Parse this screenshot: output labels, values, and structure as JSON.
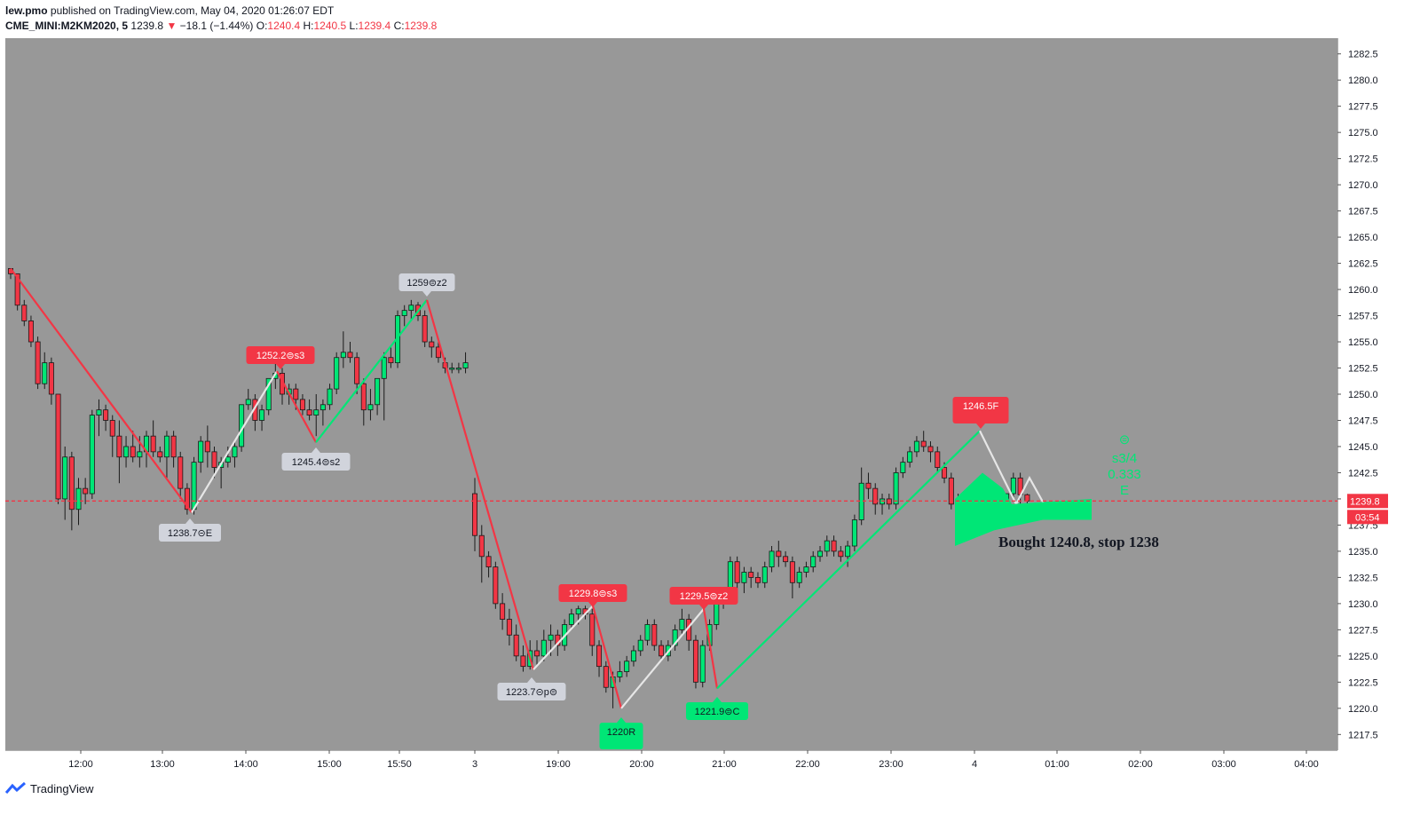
{
  "header": {
    "author": "lew.pmo",
    "published_text": "published on TradingView.com, May 04, 2020 01:26:07 EDT",
    "symbol": "CME_MINI:M2KM2020, 5",
    "last": "1239.8",
    "change": "−18.1 (−1.44%)",
    "open_label": "O:",
    "open": "1240.4",
    "high_label": "H:",
    "high": "1240.5",
    "low_label": "L:",
    "low": "1239.4",
    "close_label": "C:",
    "close": "1239.8"
  },
  "footer": {
    "brand": "TradingView"
  },
  "colors": {
    "up": "#00e676",
    "down": "#f23645",
    "plot_bg": "#989898",
    "label_red": "#f23645",
    "label_grey": "#d1d4dc",
    "label_green": "#00e676",
    "zigzag_white": "#e6e6e6"
  },
  "chart_data": {
    "type": "candlestick",
    "y_range": [
      1216.0,
      1284.0
    ],
    "y_ticks": [
      "1217.5",
      "1220.0",
      "1222.5",
      "1225.0",
      "1227.5",
      "1230.0",
      "1232.5",
      "1235.0",
      "1237.5",
      "1240.0",
      "1242.5",
      "1245.0",
      "1247.5",
      "1250.0",
      "1252.5",
      "1255.0",
      "1257.5",
      "1260.0",
      "1262.5",
      "1265.0",
      "1267.5",
      "1270.0",
      "1272.5",
      "1275.0",
      "1277.5",
      "1280.0",
      "1282.5"
    ],
    "x_ticks": [
      "12:00",
      "13:00",
      "14:00",
      "15:00",
      "15:50",
      "3",
      "19:00",
      "20:00",
      "21:00",
      "22:00",
      "23:00",
      "4",
      "01:00",
      "02:00",
      "03:00",
      "04:00"
    ],
    "last_price": "1239.8",
    "countdown": "03:54",
    "pivot_labels": [
      {
        "text": "1252.2⊜s3",
        "kind": "high",
        "price": 1252.2,
        "style": "red"
      },
      {
        "text": "1245.4⊜s2",
        "kind": "low",
        "price": 1245.4,
        "style": "grey"
      },
      {
        "text": "1259⊜z2",
        "kind": "high",
        "price": 1259.0,
        "style": "grey"
      },
      {
        "text": "1238.7⊝E",
        "kind": "low",
        "price": 1238.7,
        "style": "grey"
      },
      {
        "text": "1229.8⊜s3",
        "kind": "high",
        "price": 1229.8,
        "style": "red"
      },
      {
        "text": "1223.7⊝p⊜",
        "kind": "low",
        "price": 1223.7,
        "style": "grey"
      },
      {
        "text": "1220R",
        "kind": "low",
        "price": 1220.0,
        "style": "green"
      },
      {
        "text": "1229.5⊜z2",
        "kind": "high",
        "price": 1229.5,
        "style": "red"
      },
      {
        "text": "1221.9⊜C",
        "kind": "low",
        "price": 1221.9,
        "style": "green"
      },
      {
        "text": "1246.5F",
        "kind": "high",
        "price": 1246.5,
        "style": "red"
      }
    ],
    "annotations": [
      {
        "text": "Bought 1240.8, stop 1238"
      },
      {
        "text": "⊜"
      },
      {
        "text": "s3/4"
      },
      {
        "text": "0.333"
      },
      {
        "text": "E"
      }
    ],
    "candles": [
      [
        1262.0,
        1262.0,
        1261.0,
        1261.5
      ],
      [
        1261.5,
        1261.5,
        1258.0,
        1258.5
      ],
      [
        1258.5,
        1259.0,
        1256.5,
        1257.0
      ],
      [
        1257.0,
        1257.5,
        1254.5,
        1255.0
      ],
      [
        1255.0,
        1255.5,
        1250.5,
        1251.0
      ],
      [
        1251.0,
        1254.0,
        1250.5,
        1253.0
      ],
      [
        1253.0,
        1253.5,
        1249.0,
        1250.0
      ],
      [
        1250.0,
        1250.0,
        1239.5,
        1240.0
      ],
      [
        1240.0,
        1245.0,
        1238.0,
        1244.0
      ],
      [
        1244.0,
        1244.5,
        1237.0,
        1239.0
      ],
      [
        1239.0,
        1242.0,
        1237.5,
        1241.0
      ],
      [
        1241.0,
        1242.0,
        1239.5,
        1240.5
      ],
      [
        1240.5,
        1248.5,
        1240.0,
        1248.0
      ],
      [
        1248.0,
        1249.5,
        1246.0,
        1248.5
      ],
      [
        1248.5,
        1249.0,
        1246.5,
        1247.5
      ],
      [
        1247.5,
        1248.0,
        1244.0,
        1246.0
      ],
      [
        1246.0,
        1247.5,
        1241.5,
        1244.0
      ],
      [
        1244.0,
        1246.0,
        1243.0,
        1245.0
      ],
      [
        1245.0,
        1246.5,
        1243.5,
        1244.0
      ],
      [
        1244.0,
        1246.0,
        1243.0,
        1244.5
      ],
      [
        1244.5,
        1246.5,
        1243.0,
        1246.0
      ],
      [
        1246.0,
        1247.5,
        1244.0,
        1244.5
      ],
      [
        1244.5,
        1245.0,
        1243.5,
        1244.0
      ],
      [
        1244.0,
        1246.5,
        1242.0,
        1246.0
      ],
      [
        1246.0,
        1246.5,
        1243.0,
        1244.0
      ],
      [
        1244.0,
        1244.5,
        1240.0,
        1241.0
      ],
      [
        1241.0,
        1241.5,
        1238.5,
        1239.0
      ],
      [
        1239.0,
        1244.0,
        1238.5,
        1243.5
      ],
      [
        1243.5,
        1246.0,
        1242.5,
        1245.5
      ],
      [
        1245.5,
        1247.0,
        1243.0,
        1244.5
      ],
      [
        1244.5,
        1245.0,
        1242.0,
        1243.0
      ],
      [
        1243.0,
        1244.0,
        1241.0,
        1243.5
      ],
      [
        1243.5,
        1245.0,
        1243.0,
        1244.0
      ],
      [
        1244.0,
        1245.5,
        1243.0,
        1245.0
      ],
      [
        1245.0,
        1249.0,
        1244.5,
        1249.0
      ],
      [
        1249.0,
        1250.5,
        1248.5,
        1249.5
      ],
      [
        1249.5,
        1250.0,
        1246.5,
        1247.5
      ],
      [
        1247.5,
        1249.0,
        1246.5,
        1248.5
      ],
      [
        1248.5,
        1251.5,
        1248.0,
        1251.5
      ],
      [
        1251.5,
        1253.0,
        1250.5,
        1252.0
      ],
      [
        1252.0,
        1252.5,
        1249.0,
        1250.0
      ],
      [
        1250.0,
        1251.0,
        1249.0,
        1250.5
      ],
      [
        1250.5,
        1251.0,
        1248.5,
        1249.5
      ],
      [
        1249.5,
        1250.0,
        1248.0,
        1248.5
      ],
      [
        1248.5,
        1249.5,
        1247.5,
        1248.0
      ],
      [
        1248.0,
        1250.0,
        1246.0,
        1248.5
      ],
      [
        1248.5,
        1249.5,
        1247.0,
        1249.0
      ],
      [
        1249.0,
        1251.0,
        1248.5,
        1250.5
      ],
      [
        1250.5,
        1254.0,
        1250.0,
        1253.5
      ],
      [
        1253.5,
        1256.0,
        1252.5,
        1254.0
      ],
      [
        1254.0,
        1255.0,
        1253.0,
        1253.5
      ],
      [
        1253.5,
        1254.0,
        1250.0,
        1251.0
      ],
      [
        1251.0,
        1251.5,
        1247.0,
        1248.5
      ],
      [
        1248.5,
        1250.5,
        1247.5,
        1249.0
      ],
      [
        1249.0,
        1251.5,
        1248.0,
        1251.5
      ],
      [
        1251.5,
        1254.0,
        1247.5,
        1253.5
      ],
      [
        1253.5,
        1254.5,
        1252.5,
        1253.0
      ],
      [
        1253.0,
        1258.0,
        1252.5,
        1257.5
      ],
      [
        1257.5,
        1258.5,
        1256.5,
        1258.0
      ],
      [
        1258.0,
        1259.0,
        1257.0,
        1258.5
      ],
      [
        1258.5,
        1258.8,
        1257.0,
        1257.5
      ],
      [
        1257.5,
        1258.0,
        1254.5,
        1255.0
      ],
      [
        1255.0,
        1255.5,
        1253.5,
        1254.5
      ],
      [
        1254.5,
        1255.0,
        1253.0,
        1253.5
      ],
      [
        1253.0,
        1253.5,
        1252.0,
        1252.5
      ],
      [
        1252.5,
        1253.0,
        1252.0,
        1252.5
      ],
      [
        1252.5,
        1253.0,
        1252.0,
        1252.5
      ],
      [
        1252.5,
        1254.0,
        1252.0,
        1253.0
      ],
      [
        1240.5,
        1242.0,
        1235.0,
        1236.5
      ],
      [
        1236.5,
        1237.5,
        1232.0,
        1234.5
      ],
      [
        1234.5,
        1235.0,
        1232.5,
        1233.5
      ],
      [
        1233.5,
        1234.0,
        1229.5,
        1230.0
      ],
      [
        1230.0,
        1231.0,
        1227.5,
        1228.5
      ],
      [
        1228.5,
        1229.5,
        1226.0,
        1227.0
      ],
      [
        1227.0,
        1228.0,
        1224.5,
        1225.0
      ],
      [
        1225.0,
        1226.0,
        1223.5,
        1224.0
      ],
      [
        1224.0,
        1226.5,
        1223.7,
        1225.5
      ],
      [
        1225.5,
        1226.5,
        1224.0,
        1225.0
      ],
      [
        1225.0,
        1227.5,
        1224.5,
        1226.5
      ],
      [
        1226.5,
        1228.0,
        1225.0,
        1227.0
      ],
      [
        1227.0,
        1227.5,
        1225.0,
        1226.0
      ],
      [
        1226.0,
        1228.5,
        1225.5,
        1228.0
      ],
      [
        1228.0,
        1229.5,
        1227.5,
        1229.0
      ],
      [
        1229.0,
        1229.8,
        1228.0,
        1229.5
      ],
      [
        1229.5,
        1229.8,
        1228.5,
        1229.0
      ],
      [
        1229.0,
        1229.5,
        1225.0,
        1226.0
      ],
      [
        1226.0,
        1226.5,
        1223.0,
        1224.0
      ],
      [
        1224.0,
        1224.5,
        1221.5,
        1222.0
      ],
      [
        1222.0,
        1223.5,
        1220.0,
        1223.0
      ],
      [
        1223.0,
        1224.5,
        1222.5,
        1223.5
      ],
      [
        1223.5,
        1225.0,
        1223.0,
        1224.5
      ],
      [
        1224.5,
        1226.0,
        1224.0,
        1225.5
      ],
      [
        1225.5,
        1227.0,
        1225.0,
        1226.5
      ],
      [
        1226.5,
        1228.5,
        1226.0,
        1228.0
      ],
      [
        1228.0,
        1228.5,
        1225.5,
        1226.0
      ],
      [
        1226.0,
        1226.5,
        1224.5,
        1225.0
      ],
      [
        1225.0,
        1226.5,
        1224.5,
        1226.0
      ],
      [
        1226.0,
        1228.0,
        1225.5,
        1227.5
      ],
      [
        1227.5,
        1229.5,
        1227.0,
        1228.5
      ],
      [
        1228.5,
        1229.0,
        1225.5,
        1226.5
      ],
      [
        1226.5,
        1227.0,
        1221.9,
        1222.5
      ],
      [
        1222.5,
        1226.5,
        1222.0,
        1226.0
      ],
      [
        1226.0,
        1228.5,
        1225.5,
        1228.0
      ],
      [
        1228.0,
        1230.5,
        1227.5,
        1230.0
      ],
      [
        1230.0,
        1231.5,
        1229.5,
        1231.0
      ],
      [
        1231.0,
        1234.5,
        1230.5,
        1234.0
      ],
      [
        1234.0,
        1234.5,
        1231.0,
        1232.0
      ],
      [
        1232.0,
        1233.5,
        1231.0,
        1233.0
      ],
      [
        1233.0,
        1233.5,
        1231.5,
        1232.5
      ],
      [
        1232.5,
        1233.0,
        1231.5,
        1232.0
      ],
      [
        1232.0,
        1234.0,
        1231.5,
        1233.5
      ],
      [
        1233.5,
        1235.5,
        1233.0,
        1235.0
      ],
      [
        1235.0,
        1236.0,
        1233.5,
        1234.5
      ],
      [
        1234.5,
        1235.0,
        1233.5,
        1234.0
      ],
      [
        1234.0,
        1234.5,
        1230.5,
        1232.0
      ],
      [
        1232.0,
        1233.5,
        1231.5,
        1233.0
      ],
      [
        1233.0,
        1234.0,
        1232.5,
        1233.5
      ],
      [
        1233.5,
        1235.0,
        1233.0,
        1234.5
      ],
      [
        1234.5,
        1235.5,
        1234.0,
        1235.0
      ],
      [
        1235.0,
        1236.5,
        1234.5,
        1236.0
      ],
      [
        1236.0,
        1236.5,
        1234.5,
        1235.0
      ],
      [
        1235.0,
        1235.5,
        1234.0,
        1234.5
      ],
      [
        1234.5,
        1236.0,
        1233.5,
        1235.5
      ],
      [
        1235.5,
        1238.5,
        1235.0,
        1238.0
      ],
      [
        1238.0,
        1243.0,
        1237.5,
        1241.5
      ],
      [
        1241.5,
        1242.5,
        1240.0,
        1241.0
      ],
      [
        1241.0,
        1241.5,
        1238.5,
        1239.5
      ],
      [
        1239.5,
        1240.5,
        1238.5,
        1240.0
      ],
      [
        1240.0,
        1240.5,
        1239.0,
        1239.5
      ],
      [
        1239.5,
        1243.0,
        1239.0,
        1242.5
      ],
      [
        1242.5,
        1244.0,
        1242.0,
        1243.5
      ],
      [
        1243.5,
        1245.0,
        1243.0,
        1244.5
      ],
      [
        1244.5,
        1246.0,
        1244.0,
        1245.5
      ],
      [
        1245.5,
        1246.5,
        1244.5,
        1245.0
      ],
      [
        1245.0,
        1245.5,
        1243.5,
        1244.5
      ],
      [
        1244.5,
        1245.0,
        1242.5,
        1243.0
      ],
      [
        1243.0,
        1243.5,
        1241.5,
        1242.0
      ],
      [
        1242.0,
        1242.5,
        1239.0,
        1239.5
      ],
      [
        1239.5,
        1240.5,
        1238.5,
        1239.0
      ],
      [
        1239.0,
        1240.5,
        1238.5,
        1240.0
      ],
      [
        1240.0,
        1241.0,
        1239.0,
        1240.5
      ],
      [
        1240.5,
        1242.0,
        1240.0,
        1241.5
      ],
      [
        1241.5,
        1242.0,
        1239.5,
        1240.0
      ],
      [
        1240.0,
        1240.5,
        1238.5,
        1239.5
      ],
      [
        1239.5,
        1240.0,
        1238.0,
        1238.5
      ],
      [
        1238.5,
        1240.5,
        1238.0,
        1240.5
      ],
      [
        1240.5,
        1242.5,
        1240.0,
        1242.0
      ],
      [
        1242.0,
        1242.5,
        1239.5,
        1240.4
      ],
      [
        1240.4,
        1240.5,
        1239.4,
        1239.8
      ]
    ]
  }
}
